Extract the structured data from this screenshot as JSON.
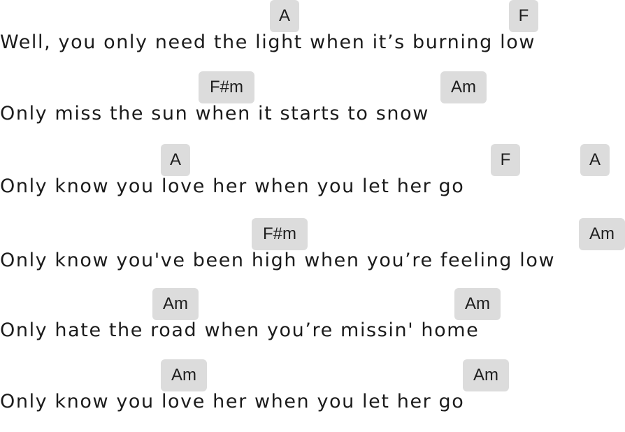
{
  "song": {
    "lines": [
      {
        "lyric": "Well, you only need the light when it’s burning low",
        "chords": [
          "A",
          "F"
        ]
      },
      {
        "lyric": "Only miss the sun when it starts to snow",
        "chords": [
          "F#m",
          "Am"
        ]
      },
      {
        "lyric": "Only know you love her when you let her go",
        "chords": [
          "A",
          "F",
          "A"
        ]
      },
      {
        "lyric": "Only know you've been high when you’re feeling low",
        "chords": [
          "F#m",
          "Am"
        ]
      },
      {
        "lyric": "Only hate the road when you’re missin' home",
        "chords": [
          "Am",
          "Am"
        ]
      },
      {
        "lyric": "Only know you love her when you let her go",
        "chords": [
          "Am",
          "Am"
        ]
      }
    ]
  }
}
